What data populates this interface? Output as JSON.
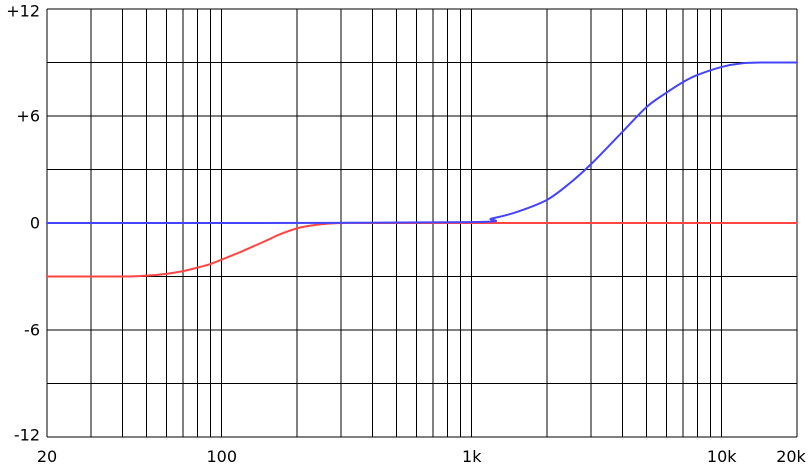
{
  "chart_data": {
    "type": "line",
    "title": "",
    "xlabel": "",
    "ylabel": "",
    "x_scale": "log",
    "xlim": [
      20,
      20000
    ],
    "ylim": [
      -12,
      12
    ],
    "grid": true,
    "x_gridlines": [
      20,
      30,
      40,
      50,
      60,
      70,
      80,
      90,
      100,
      200,
      300,
      400,
      500,
      600,
      700,
      800,
      900,
      1000,
      2000,
      3000,
      4000,
      5000,
      6000,
      7000,
      8000,
      9000,
      10000,
      20000
    ],
    "y_gridlines": [
      -12,
      -9,
      -6,
      -3,
      0,
      3,
      6,
      9,
      12
    ],
    "x_ticks": [
      {
        "value": 20,
        "label": "20"
      },
      {
        "value": 100,
        "label": "100"
      },
      {
        "value": 1000,
        "label": "1k"
      },
      {
        "value": 10000,
        "label": "10k"
      },
      {
        "value": 20000,
        "label": "20k"
      }
    ],
    "y_ticks": [
      {
        "value": 12,
        "label": "+12"
      },
      {
        "value": 6,
        "label": "+6"
      },
      {
        "value": 0,
        "label": "0"
      },
      {
        "value": -6,
        "label": "-6"
      },
      {
        "value": -12,
        "label": "-12"
      }
    ],
    "series": [
      {
        "color": "#ff4444",
        "x": [
          20,
          40,
          50,
          60,
          70,
          80,
          90,
          100,
          120,
          150,
          170,
          200,
          240,
          300,
          400,
          1000,
          20000
        ],
        "y": [
          -3.0,
          -3.0,
          -2.95,
          -2.85,
          -2.7,
          -2.5,
          -2.3,
          -2.05,
          -1.6,
          -1.0,
          -0.65,
          -0.3,
          -0.1,
          0.0,
          0.0,
          0.0,
          0.0
        ]
      },
      {
        "color": "#4444ff",
        "x": [
          20,
          100,
          1000,
          1200,
          1500,
          2000,
          2500,
          3000,
          4000,
          5000,
          6000,
          7000,
          8000,
          10000,
          12000,
          15000,
          20000
        ],
        "y": [
          0.0,
          0.0,
          0.05,
          0.25,
          0.6,
          1.3,
          2.3,
          3.3,
          5.1,
          6.5,
          7.3,
          7.9,
          8.3,
          8.75,
          8.95,
          9.0,
          9.0
        ]
      }
    ]
  }
}
